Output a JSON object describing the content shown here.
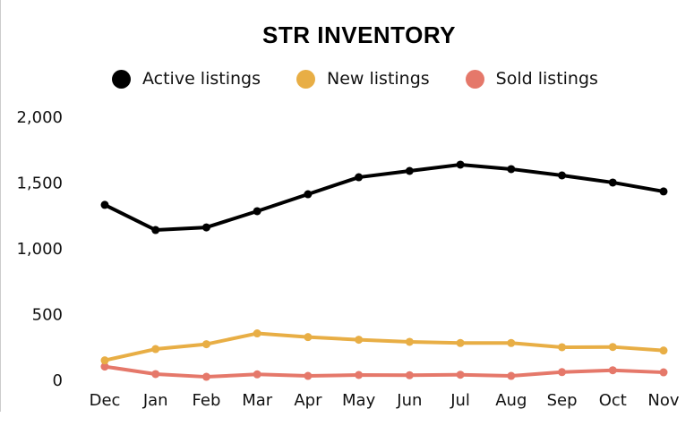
{
  "chart_data": {
    "type": "line",
    "title": "STR INVENTORY",
    "categories": [
      "Dec",
      "Jan",
      "Feb",
      "Mar",
      "Apr",
      "May",
      "Jun",
      "Jul",
      "Aug",
      "Sep",
      "Oct",
      "Nov"
    ],
    "series": [
      {
        "name": "Active listings",
        "color": "#000000",
        "values": [
          1327,
          1136,
          1156,
          1279,
          1408,
          1537,
          1585,
          1633,
          1599,
          1551,
          1497,
          1429
        ]
      },
      {
        "name": "New listings",
        "color": "#E8AE45",
        "values": [
          145,
          231,
          268,
          350,
          322,
          302,
          286,
          277,
          277,
          245,
          247,
          220
        ]
      },
      {
        "name": "Sold listings",
        "color": "#E5786A",
        "values": [
          98,
          41,
          20,
          39,
          27,
          34,
          32,
          36,
          27,
          56,
          70,
          54
        ]
      }
    ],
    "yticks": [
      "0",
      "500",
      "1,000",
      "1,500",
      "2,000"
    ],
    "ylim": [
      0,
      2000
    ],
    "legend": "top",
    "grid": false
  }
}
